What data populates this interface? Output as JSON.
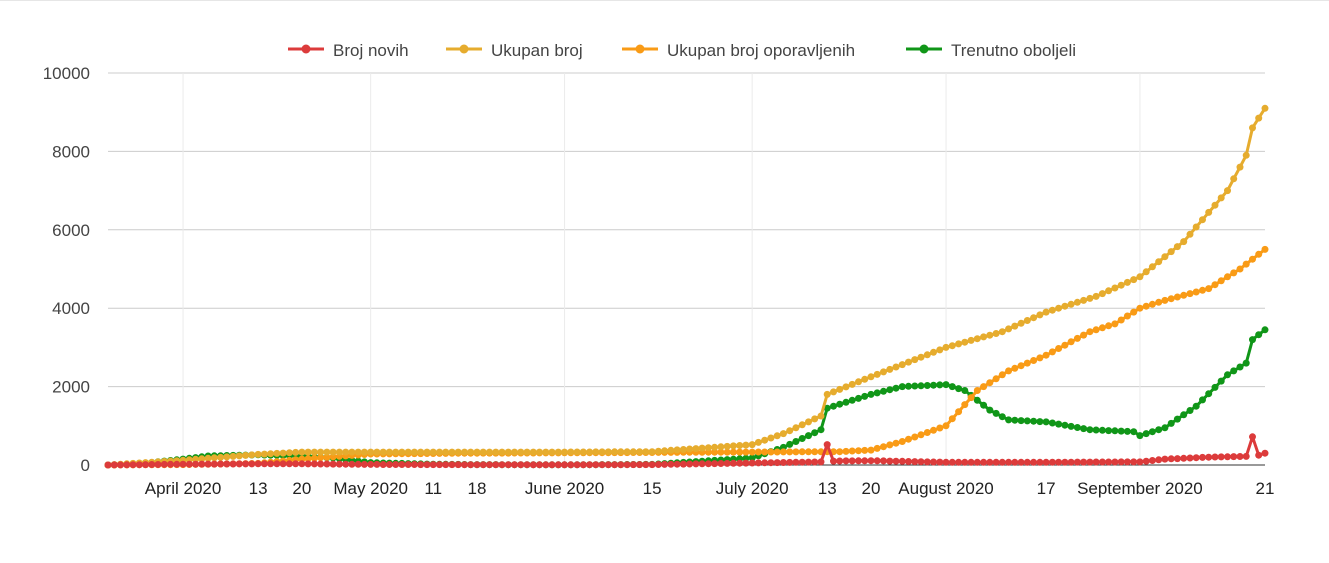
{
  "chart_data": {
    "type": "line",
    "title": "",
    "xlabel": "",
    "ylabel": "",
    "ylim": [
      0,
      10000
    ],
    "y_ticks": [
      "0",
      "2000",
      "4000",
      "6000",
      "8000",
      "10000"
    ],
    "x_range": [
      "2020-03-20",
      "2020-09-21"
    ],
    "x_ticks": [
      {
        "date": "2020-04-01",
        "label": "April 2020"
      },
      {
        "date": "2020-04-13",
        "label": "13"
      },
      {
        "date": "2020-04-20",
        "label": "20"
      },
      {
        "date": "2020-05-01",
        "label": "May 2020"
      },
      {
        "date": "2020-05-11",
        "label": "11"
      },
      {
        "date": "2020-05-18",
        "label": "18"
      },
      {
        "date": "2020-06-01",
        "label": "June 2020"
      },
      {
        "date": "2020-06-15",
        "label": "15"
      },
      {
        "date": "2020-07-01",
        "label": "July 2020"
      },
      {
        "date": "2020-07-13",
        "label": "13"
      },
      {
        "date": "2020-07-20",
        "label": "20"
      },
      {
        "date": "2020-08-01",
        "label": "August 2020"
      },
      {
        "date": "2020-08-17",
        "label": "17"
      },
      {
        "date": "2020-09-01",
        "label": "September 2020"
      },
      {
        "date": "2020-09-21",
        "label": "21"
      }
    ],
    "grid": true,
    "legend_position": "top",
    "series": [
      {
        "name": "Broj novih",
        "color": "#dc3b3b",
        "points": [
          [
            "2020-03-20",
            0
          ],
          [
            "2020-04-01",
            20
          ],
          [
            "2020-04-13",
            30
          ],
          [
            "2020-04-20",
            30
          ],
          [
            "2020-05-01",
            15
          ],
          [
            "2020-05-11",
            10
          ],
          [
            "2020-06-01",
            5
          ],
          [
            "2020-06-15",
            10
          ],
          [
            "2020-07-01",
            50
          ],
          [
            "2020-07-12",
            80
          ],
          [
            "2020-07-13",
            520
          ],
          [
            "2020-07-14",
            100
          ],
          [
            "2020-07-20",
            110
          ],
          [
            "2020-08-01",
            70
          ],
          [
            "2020-08-17",
            70
          ],
          [
            "2020-09-01",
            80
          ],
          [
            "2020-09-05",
            150
          ],
          [
            "2020-09-12",
            200
          ],
          [
            "2020-09-18",
            220
          ],
          [
            "2020-09-19",
            720
          ],
          [
            "2020-09-20",
            250
          ],
          [
            "2020-09-21",
            300
          ]
        ]
      },
      {
        "name": "Ukupan broj",
        "color": "#e6ac2e",
        "points": [
          [
            "2020-03-20",
            0
          ],
          [
            "2020-04-01",
            120
          ],
          [
            "2020-04-13",
            270
          ],
          [
            "2020-04-20",
            330
          ],
          [
            "2020-05-01",
            330
          ],
          [
            "2020-06-01",
            330
          ],
          [
            "2020-06-15",
            340
          ],
          [
            "2020-07-01",
            520
          ],
          [
            "2020-07-06",
            800
          ],
          [
            "2020-07-12",
            1250
          ],
          [
            "2020-07-13",
            1800
          ],
          [
            "2020-07-20",
            2250
          ],
          [
            "2020-08-01",
            3000
          ],
          [
            "2020-08-10",
            3400
          ],
          [
            "2020-08-17",
            3900
          ],
          [
            "2020-08-25",
            4300
          ],
          [
            "2020-09-01",
            4800
          ],
          [
            "2020-09-08",
            5700
          ],
          [
            "2020-09-15",
            7000
          ],
          [
            "2020-09-18",
            7900
          ],
          [
            "2020-09-19",
            8600
          ],
          [
            "2020-09-21",
            9100
          ]
        ]
      },
      {
        "name": "Ukupan broj oporavljenih",
        "color": "#f99b16",
        "points": [
          [
            "2020-03-20",
            0
          ],
          [
            "2020-04-01",
            10
          ],
          [
            "2020-04-13",
            40
          ],
          [
            "2020-04-20",
            150
          ],
          [
            "2020-05-01",
            280
          ],
          [
            "2020-05-15",
            300
          ],
          [
            "2020-06-01",
            310
          ],
          [
            "2020-06-15",
            320
          ],
          [
            "2020-07-01",
            330
          ],
          [
            "2020-07-15",
            340
          ],
          [
            "2020-07-20",
            380
          ],
          [
            "2020-07-25",
            600
          ],
          [
            "2020-08-01",
            1000
          ],
          [
            "2020-08-06",
            1900
          ],
          [
            "2020-08-11",
            2400
          ],
          [
            "2020-08-17",
            2800
          ],
          [
            "2020-08-24",
            3400
          ],
          [
            "2020-08-28",
            3600
          ],
          [
            "2020-09-01",
            4000
          ],
          [
            "2020-09-05",
            4200
          ],
          [
            "2020-09-12",
            4500
          ],
          [
            "2020-09-17",
            5000
          ],
          [
            "2020-09-21",
            5500
          ]
        ]
      },
      {
        "name": "Trenutno oboljeli",
        "color": "#109618",
        "points": [
          [
            "2020-03-20",
            0
          ],
          [
            "2020-03-25",
            30
          ],
          [
            "2020-04-01",
            150
          ],
          [
            "2020-04-05",
            230
          ],
          [
            "2020-04-13",
            260
          ],
          [
            "2020-04-20",
            230
          ],
          [
            "2020-04-25",
            180
          ],
          [
            "2020-05-01",
            60
          ],
          [
            "2020-05-11",
            20
          ],
          [
            "2020-05-18",
            10
          ],
          [
            "2020-06-01",
            5
          ],
          [
            "2020-06-15",
            15
          ],
          [
            "2020-07-01",
            180
          ],
          [
            "2020-07-06",
            450
          ],
          [
            "2020-07-12",
            900
          ],
          [
            "2020-07-13",
            1450
          ],
          [
            "2020-07-20",
            1800
          ],
          [
            "2020-07-25",
            2000
          ],
          [
            "2020-08-01",
            2050
          ],
          [
            "2020-08-04",
            1900
          ],
          [
            "2020-08-08",
            1400
          ],
          [
            "2020-08-11",
            1150
          ],
          [
            "2020-08-17",
            1100
          ],
          [
            "2020-08-24",
            900
          ],
          [
            "2020-08-31",
            850
          ],
          [
            "2020-09-01",
            750
          ],
          [
            "2020-09-05",
            950
          ],
          [
            "2020-09-10",
            1500
          ],
          [
            "2020-09-15",
            2300
          ],
          [
            "2020-09-18",
            2600
          ],
          [
            "2020-09-19",
            3200
          ],
          [
            "2020-09-21",
            3450
          ]
        ]
      }
    ]
  }
}
